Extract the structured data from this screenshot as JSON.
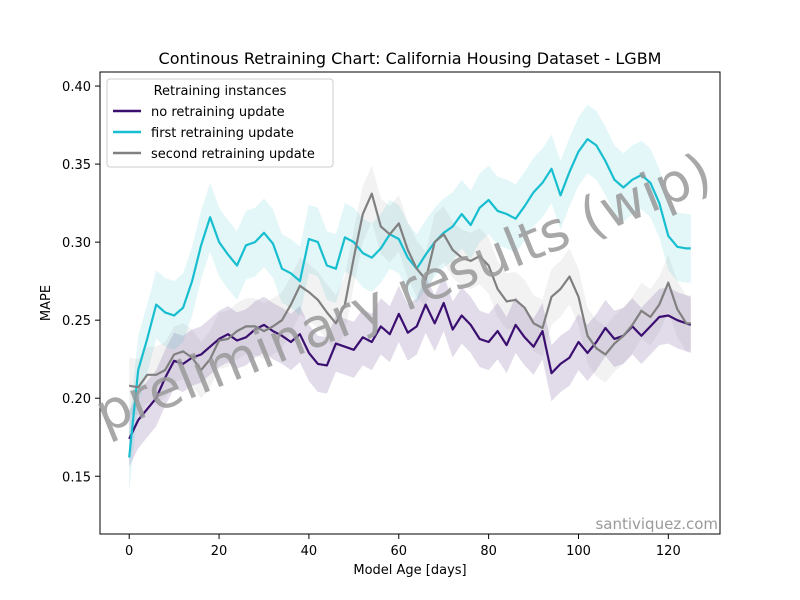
{
  "chart_data": {
    "type": "line",
    "title": "Continous Retraining Chart: California Housing Dataset - LGBM",
    "xlabel": "Model Age [days]",
    "ylabel": "MAPE",
    "xlim": [
      -6.5,
      131.5
    ],
    "ylim": [
      0.113,
      0.409
    ],
    "xticks": [
      0,
      20,
      40,
      60,
      80,
      100,
      120
    ],
    "yticks": [
      0.15,
      0.2,
      0.25,
      0.3,
      0.35,
      0.4
    ],
    "ytick_labels": [
      "0.15",
      "0.20",
      "0.25",
      "0.30",
      "0.35",
      "0.40"
    ],
    "grid": false,
    "legend": {
      "title": "Retraining instances",
      "placement": "top-left"
    },
    "series": [
      {
        "name": "no retraining update",
        "color": "#3b0f70",
        "band_opacity": 0.15,
        "x": [
          0,
          2,
          4,
          6,
          8,
          10,
          12,
          14,
          16,
          18,
          20,
          22,
          24,
          26,
          28,
          30,
          32,
          34,
          36,
          38,
          40,
          42,
          44,
          46,
          48,
          50,
          52,
          54,
          56,
          58,
          60,
          62,
          64,
          66,
          68,
          70,
          72,
          74,
          76,
          78,
          80,
          82,
          84,
          86,
          88,
          90,
          92,
          94,
          96,
          98,
          100,
          102,
          104,
          106,
          108,
          110,
          112,
          114,
          116,
          118,
          120,
          122,
          124,
          125
        ],
        "y": [
          0.174,
          0.186,
          0.193,
          0.2,
          0.213,
          0.224,
          0.222,
          0.226,
          0.228,
          0.233,
          0.238,
          0.241,
          0.237,
          0.239,
          0.244,
          0.247,
          0.243,
          0.24,
          0.236,
          0.241,
          0.229,
          0.222,
          0.221,
          0.235,
          0.233,
          0.231,
          0.239,
          0.236,
          0.246,
          0.241,
          0.254,
          0.242,
          0.246,
          0.26,
          0.248,
          0.261,
          0.244,
          0.253,
          0.247,
          0.238,
          0.236,
          0.243,
          0.234,
          0.247,
          0.239,
          0.233,
          0.243,
          0.216,
          0.222,
          0.226,
          0.236,
          0.229,
          0.236,
          0.245,
          0.238,
          0.24,
          0.246,
          0.24,
          0.246,
          0.252,
          0.253,
          0.25,
          0.248,
          0.247
        ],
        "band_halfwidth": 0.018
      },
      {
        "name": "first retraining update",
        "color": "#17becf",
        "band_opacity": 0.12,
        "x": [
          0,
          2,
          4,
          6,
          8,
          10,
          12,
          14,
          16,
          18,
          20,
          22,
          24,
          26,
          28,
          30,
          32,
          34,
          36,
          38,
          40,
          42,
          44,
          46,
          48,
          50,
          52,
          54,
          56,
          58,
          60,
          62,
          64,
          66,
          68,
          70,
          72,
          74,
          76,
          78,
          80,
          82,
          84,
          86,
          88,
          90,
          92,
          94,
          96,
          98,
          100,
          102,
          104,
          106,
          108,
          110,
          112,
          114,
          116,
          118,
          120,
          122,
          124,
          125
        ],
        "y": [
          0.162,
          0.218,
          0.238,
          0.26,
          0.255,
          0.253,
          0.258,
          0.275,
          0.298,
          0.316,
          0.3,
          0.292,
          0.285,
          0.298,
          0.3,
          0.306,
          0.299,
          0.283,
          0.28,
          0.275,
          0.302,
          0.3,
          0.285,
          0.283,
          0.303,
          0.3,
          0.293,
          0.29,
          0.296,
          0.305,
          0.302,
          0.29,
          0.283,
          0.292,
          0.3,
          0.306,
          0.31,
          0.318,
          0.311,
          0.322,
          0.327,
          0.32,
          0.318,
          0.315,
          0.323,
          0.332,
          0.338,
          0.347,
          0.33,
          0.345,
          0.358,
          0.366,
          0.362,
          0.352,
          0.34,
          0.335,
          0.34,
          0.343,
          0.338,
          0.325,
          0.304,
          0.297,
          0.296,
          0.296
        ],
        "band_halfwidth": 0.022
      },
      {
        "name": "second retraining update",
        "color": "#808080",
        "band_opacity": 0.1,
        "x": [
          0,
          2,
          4,
          6,
          8,
          10,
          12,
          14,
          16,
          18,
          20,
          22,
          24,
          26,
          28,
          30,
          32,
          34,
          36,
          38,
          40,
          42,
          44,
          46,
          48,
          50,
          52,
          54,
          56,
          58,
          60,
          62,
          64,
          66,
          68,
          70,
          72,
          74,
          76,
          78,
          80,
          82,
          84,
          86,
          88,
          90,
          92,
          94,
          96,
          98,
          100,
          102,
          104,
          106,
          108,
          110,
          112,
          114,
          116,
          118,
          120,
          122,
          124,
          125
        ],
        "y": [
          0.208,
          0.207,
          0.215,
          0.215,
          0.218,
          0.228,
          0.23,
          0.226,
          0.218,
          0.225,
          0.237,
          0.238,
          0.243,
          0.246,
          0.246,
          0.243,
          0.246,
          0.25,
          0.26,
          0.272,
          0.268,
          0.263,
          0.255,
          0.248,
          0.26,
          0.29,
          0.318,
          0.331,
          0.31,
          0.305,
          0.312,
          0.295,
          0.283,
          0.276,
          0.3,
          0.305,
          0.295,
          0.29,
          0.288,
          0.291,
          0.285,
          0.27,
          0.262,
          0.263,
          0.258,
          0.248,
          0.245,
          0.265,
          0.27,
          0.278,
          0.265,
          0.24,
          0.232,
          0.228,
          0.235,
          0.24,
          0.247,
          0.256,
          0.252,
          0.26,
          0.274,
          0.257,
          0.248,
          0.248
        ],
        "band_halfwidth": 0.018
      }
    ]
  },
  "watermark": "preliminary results (wip)",
  "credit": "santiviquez.com"
}
